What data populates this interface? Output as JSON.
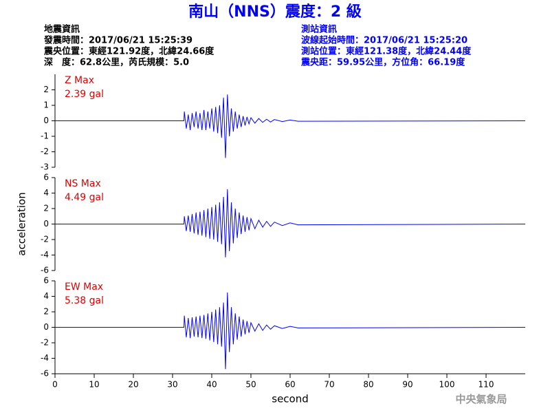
{
  "header": {
    "title": "南山（NNS）震度：2 級",
    "left": [
      "地震資訊",
      "發震時間：2017/06/21 15:25:39",
      "震央位置：東經121.92度，北緯24.66度",
      "深　度：62.8公里，芮氏規模：5.0"
    ],
    "right": [
      "測站資訊",
      "波線起始時間：2017/06/21 15:25:20",
      "測站位置：東經121.38度，北緯24.44度",
      "震央距：59.95公里，方位角：66.19度"
    ]
  },
  "footer": "中央氣象局",
  "chart_data": [
    {
      "type": "line",
      "annotation": [
        "Z Max",
        "2.39 gal"
      ],
      "color": "#0000ff",
      "xlim": [
        0,
        120
      ],
      "ylim": [
        -3,
        3
      ],
      "yticks": [
        -3,
        -2,
        -1,
        0,
        1,
        2
      ],
      "x": [
        0,
        32.9,
        33,
        33.5,
        34,
        34.5,
        35,
        35.5,
        36,
        36.5,
        37,
        37.5,
        38,
        38.5,
        39,
        39.5,
        40,
        40.5,
        41,
        41.5,
        42,
        42.5,
        43,
        43.5,
        44,
        44.5,
        45,
        45.5,
        46,
        46.5,
        47,
        47.5,
        48,
        48.5,
        49,
        49.5,
        50,
        51,
        52,
        53,
        54,
        55,
        56,
        58,
        60,
        62,
        120
      ],
      "values": [
        0,
        0,
        0.6,
        -0.5,
        0.4,
        -0.6,
        0.5,
        -0.4,
        0.6,
        -0.5,
        0.5,
        -0.6,
        0.7,
        -0.6,
        0.6,
        -0.5,
        0.8,
        -0.7,
        0.9,
        -0.8,
        1.0,
        -1.1,
        1.5,
        -2.4,
        1.7,
        -1.0,
        0.8,
        -0.7,
        0.6,
        -0.5,
        0.4,
        -0.4,
        0.3,
        -0.3,
        0.25,
        -0.2,
        0.2,
        -0.15,
        0.15,
        -0.1,
        0.1,
        -0.08,
        0.08,
        -0.05,
        0.05,
        -0.03,
        0
      ]
    },
    {
      "type": "line",
      "annotation": [
        "NS Max",
        "4.49 gal"
      ],
      "color": "#0000ff",
      "ylabel": "acceleration",
      "xlim": [
        0,
        120
      ],
      "ylim": [
        -6,
        6
      ],
      "yticks": [
        -6,
        -4,
        -2,
        0,
        2,
        4,
        6
      ],
      "x": [
        0,
        32.9,
        33,
        33.5,
        34,
        34.5,
        35,
        35.5,
        36,
        36.5,
        37,
        37.5,
        38,
        38.5,
        39,
        39.5,
        40,
        40.5,
        41,
        41.5,
        42,
        42.5,
        43,
        43.5,
        44,
        44.5,
        45,
        45.5,
        46,
        46.5,
        47,
        47.5,
        48,
        48.5,
        49,
        49.5,
        50,
        51,
        52,
        53,
        54,
        55,
        56,
        58,
        60,
        62,
        120
      ],
      "values": [
        0,
        0,
        1.0,
        -0.9,
        1.1,
        -1.0,
        1.3,
        -1.2,
        1.5,
        -1.4,
        1.6,
        -1.5,
        1.8,
        -1.7,
        2.0,
        -1.9,
        2.2,
        -2.0,
        2.5,
        -2.3,
        2.8,
        -2.6,
        3.5,
        -4.3,
        4.5,
        -3.5,
        2.8,
        -2.5,
        2.0,
        -1.8,
        1.5,
        -1.3,
        1.1,
        -1.0,
        0.9,
        -0.8,
        0.7,
        -0.6,
        0.5,
        -0.4,
        0.35,
        -0.3,
        0.25,
        -0.2,
        0.15,
        -0.1,
        0
      ]
    },
    {
      "type": "line",
      "annotation": [
        "EW Max",
        "5.38 gal"
      ],
      "color": "#0000ff",
      "xlabel": "second",
      "xlim": [
        0,
        120
      ],
      "xticks": [
        0,
        10,
        20,
        30,
        40,
        50,
        60,
        70,
        80,
        90,
        100,
        110
      ],
      "ylim": [
        -6,
        6
      ],
      "yticks": [
        -6,
        -4,
        -2,
        0,
        2,
        4,
        6
      ],
      "x": [
        0,
        32.9,
        33,
        33.5,
        34,
        34.5,
        35,
        35.5,
        36,
        36.5,
        37,
        37.5,
        38,
        38.5,
        39,
        39.5,
        40,
        40.5,
        41,
        41.5,
        42,
        42.5,
        43,
        43.5,
        44,
        44.5,
        45,
        45.5,
        46,
        46.5,
        47,
        47.5,
        48,
        48.5,
        49,
        49.5,
        50,
        51,
        52,
        53,
        54,
        55,
        56,
        58,
        60,
        62,
        120
      ],
      "values": [
        0,
        0,
        1.5,
        -1.3,
        1.2,
        -1.4,
        1.3,
        -1.2,
        1.4,
        -1.3,
        1.5,
        -1.4,
        1.6,
        -1.5,
        1.8,
        -1.7,
        2.0,
        -1.9,
        2.3,
        -2.2,
        2.6,
        -2.5,
        3.2,
        -5.4,
        4.5,
        -3.2,
        2.6,
        -2.2,
        1.8,
        -1.6,
        1.4,
        -1.2,
        1.0,
        -0.9,
        0.8,
        -0.7,
        0.6,
        -0.5,
        0.45,
        -0.4,
        0.3,
        -0.25,
        0.2,
        -0.15,
        0.12,
        -0.08,
        0
      ]
    }
  ]
}
